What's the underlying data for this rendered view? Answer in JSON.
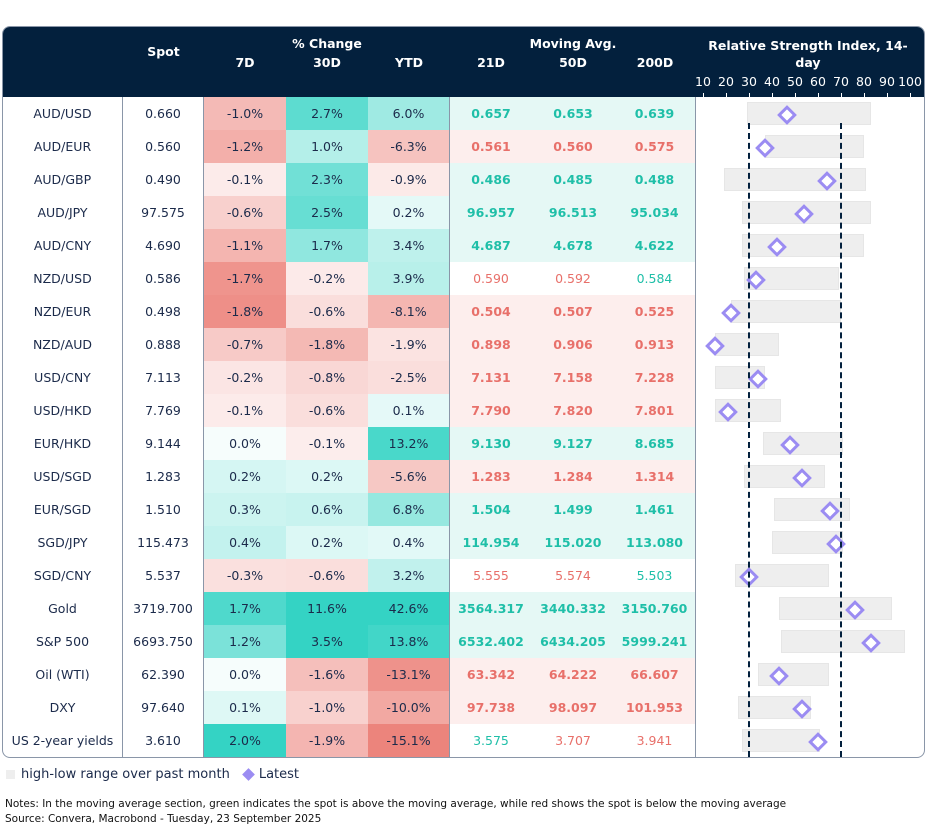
{
  "header": {
    "spot": "Spot",
    "pct_change": "% Change",
    "d7": "7D",
    "d30": "30D",
    "ytd": "YTD",
    "moving_avg": "Moving Avg.",
    "ma21": "21D",
    "ma50": "50D",
    "ma200": "200D",
    "rsi_title": "Relative Strength Index, 14-day",
    "rsi_ticks": [
      "10",
      "20",
      "30",
      "40",
      "50",
      "60",
      "70",
      "80",
      "90",
      "100"
    ]
  },
  "chart_data": {
    "type": "table",
    "rsi_axis": [
      10,
      100
    ],
    "rsi_reference_lines": [
      30,
      70
    ],
    "colors": {
      "header": "#03203d",
      "green_text": "#1fbfa8",
      "red_text": "#e8706a",
      "latest": "#9b8cf2",
      "range": "#eeeeee"
    },
    "rows": [
      {
        "name": "AUD/USD",
        "spot": "0.660",
        "d7": -1.0,
        "d30": 2.7,
        "ytd": 6.0,
        "ma": [
          "0.657",
          "0.653",
          "0.639"
        ],
        "ma_sig": [
          "g",
          "g",
          "g"
        ],
        "ma_bold": true,
        "rsi_low": 29,
        "rsi_high": 83,
        "rsi": 46.5
      },
      {
        "name": "AUD/EUR",
        "spot": "0.560",
        "d7": -1.2,
        "d30": 1.0,
        "ytd": -6.3,
        "ma": [
          "0.561",
          "0.560",
          "0.575"
        ],
        "ma_sig": [
          "r",
          "r",
          "r"
        ],
        "ma_bold": true,
        "rsi_low": 37,
        "rsi_high": 80,
        "rsi": 37
      },
      {
        "name": "AUD/GBP",
        "spot": "0.490",
        "d7": -0.1,
        "d30": 2.3,
        "ytd": -0.9,
        "ma": [
          "0.486",
          "0.485",
          "0.488"
        ],
        "ma_sig": [
          "g",
          "g",
          "g"
        ],
        "ma_bold": true,
        "rsi_low": 19,
        "rsi_high": 81,
        "rsi": 64
      },
      {
        "name": "AUD/JPY",
        "spot": "97.575",
        "d7": -0.6,
        "d30": 2.5,
        "ytd": 0.2,
        "ma": [
          "96.957",
          "96.513",
          "95.034"
        ],
        "ma_sig": [
          "g",
          "g",
          "g"
        ],
        "ma_bold": true,
        "rsi_low": 27,
        "rsi_high": 83,
        "rsi": 54
      },
      {
        "name": "AUD/CNY",
        "spot": "4.690",
        "d7": -1.1,
        "d30": 1.7,
        "ytd": 3.4,
        "ma": [
          "4.687",
          "4.678",
          "4.622"
        ],
        "ma_sig": [
          "g",
          "g",
          "g"
        ],
        "ma_bold": true,
        "rsi_low": 27,
        "rsi_high": 80,
        "rsi": 42
      },
      {
        "name": "NZD/USD",
        "spot": "0.586",
        "d7": -1.7,
        "d30": -0.2,
        "ytd": 3.9,
        "ma": [
          "0.590",
          "0.592",
          "0.584"
        ],
        "ma_sig": [
          "r",
          "r",
          "g"
        ],
        "ma_bold": false,
        "rsi_low": 28,
        "rsi_high": 69,
        "rsi": 33
      },
      {
        "name": "NZD/EUR",
        "spot": "0.498",
        "d7": -1.8,
        "d30": -0.6,
        "ytd": -8.1,
        "ma": [
          "0.504",
          "0.507",
          "0.525"
        ],
        "ma_sig": [
          "r",
          "r",
          "r"
        ],
        "ma_bold": true,
        "rsi_low": 22,
        "rsi_high": 70,
        "rsi": 22
      },
      {
        "name": "NZD/AUD",
        "spot": "0.888",
        "d7": -0.7,
        "d30": -1.8,
        "ytd": -1.9,
        "ma": [
          "0.898",
          "0.906",
          "0.913"
        ],
        "ma_sig": [
          "r",
          "r",
          "r"
        ],
        "ma_bold": true,
        "rsi_low": 15,
        "rsi_high": 43,
        "rsi": 15
      },
      {
        "name": "USD/CNY",
        "spot": "7.113",
        "d7": -0.2,
        "d30": -0.8,
        "ytd": -2.5,
        "ma": [
          "7.131",
          "7.158",
          "7.228"
        ],
        "ma_sig": [
          "r",
          "r",
          "r"
        ],
        "ma_bold": true,
        "rsi_low": 15,
        "rsi_high": 37,
        "rsi": 34
      },
      {
        "name": "USD/HKD",
        "spot": "7.769",
        "d7": -0.1,
        "d30": -0.6,
        "ytd": 0.1,
        "ma": [
          "7.790",
          "7.820",
          "7.801"
        ],
        "ma_sig": [
          "r",
          "r",
          "r"
        ],
        "ma_bold": true,
        "rsi_low": 15,
        "rsi_high": 44,
        "rsi": 21
      },
      {
        "name": "EUR/HKD",
        "spot": "9.144",
        "d7": 0.0,
        "d30": -0.1,
        "ytd": 13.2,
        "ma": [
          "9.130",
          "9.127",
          "8.685"
        ],
        "ma_sig": [
          "g",
          "g",
          "g"
        ],
        "ma_bold": true,
        "rsi_low": 36,
        "rsi_high": 71,
        "rsi": 48
      },
      {
        "name": "USD/SGD",
        "spot": "1.283",
        "d7": 0.2,
        "d30": 0.2,
        "ytd": -5.6,
        "ma": [
          "1.283",
          "1.284",
          "1.314"
        ],
        "ma_sig": [
          "r",
          "r",
          "r"
        ],
        "ma_bold": true,
        "rsi_low": 28,
        "rsi_high": 63,
        "rsi": 53
      },
      {
        "name": "EUR/SGD",
        "spot": "1.510",
        "d7": 0.3,
        "d30": 0.6,
        "ytd": 6.8,
        "ma": [
          "1.504",
          "1.499",
          "1.461"
        ],
        "ma_sig": [
          "g",
          "g",
          "g"
        ],
        "ma_bold": true,
        "rsi_low": 41,
        "rsi_high": 74,
        "rsi": 65
      },
      {
        "name": "SGD/JPY",
        "spot": "115.473",
        "d7": 0.4,
        "d30": 0.2,
        "ytd": 0.4,
        "ma": [
          "114.954",
          "115.020",
          "113.080"
        ],
        "ma_sig": [
          "g",
          "g",
          "g"
        ],
        "ma_bold": true,
        "rsi_low": 40,
        "rsi_high": 71,
        "rsi": 68
      },
      {
        "name": "SGD/CNY",
        "spot": "5.537",
        "d7": -0.3,
        "d30": -0.6,
        "ytd": 3.2,
        "ma": [
          "5.555",
          "5.574",
          "5.503"
        ],
        "ma_sig": [
          "r",
          "r",
          "g"
        ],
        "ma_bold": false,
        "rsi_low": 24,
        "rsi_high": 65,
        "rsi": 30
      },
      {
        "name": "Gold",
        "spot": "3719.700",
        "d7": 1.7,
        "d30": 11.6,
        "ytd": 42.6,
        "ma": [
          "3564.317",
          "3440.332",
          "3150.760"
        ],
        "ma_sig": [
          "g",
          "g",
          "g"
        ],
        "ma_bold": true,
        "rsi_low": 43,
        "rsi_high": 92,
        "rsi": 76
      },
      {
        "name": "S&P 500",
        "spot": "6693.750",
        "d7": 1.2,
        "d30": 3.5,
        "ytd": 13.8,
        "ma": [
          "6532.402",
          "6434.205",
          "5999.241"
        ],
        "ma_sig": [
          "g",
          "g",
          "g"
        ],
        "ma_bold": true,
        "rsi_low": 44,
        "rsi_high": 98,
        "rsi": 83
      },
      {
        "name": "Oil (WTI)",
        "spot": "62.390",
        "d7": 0.0,
        "d30": -1.6,
        "ytd": -13.1,
        "ma": [
          "63.342",
          "64.222",
          "66.607"
        ],
        "ma_sig": [
          "r",
          "r",
          "r"
        ],
        "ma_bold": true,
        "rsi_low": 34,
        "rsi_high": 65,
        "rsi": 43
      },
      {
        "name": "DXY",
        "spot": "97.640",
        "d7": 0.1,
        "d30": -1.0,
        "ytd": -10.0,
        "ma": [
          "97.738",
          "98.097",
          "101.953"
        ],
        "ma_sig": [
          "r",
          "r",
          "r"
        ],
        "ma_bold": true,
        "rsi_low": 25,
        "rsi_high": 57,
        "rsi": 53
      },
      {
        "name": "US 2-year yields",
        "spot": "3.610",
        "d7": 2.0,
        "d30": -1.9,
        "ytd": -15.1,
        "ma": [
          "3.575",
          "3.707",
          "3.941"
        ],
        "ma_sig": [
          "g",
          "r",
          "r"
        ],
        "ma_bold": false,
        "rsi_low": 27,
        "rsi_high": 61,
        "rsi": 60
      }
    ]
  },
  "legend": {
    "range": "high-low range over past month",
    "latest": "Latest"
  },
  "notes": "Notes: In the moving average section, green indicates the spot is above the moving average, while red shows the spot is below the moving average",
  "source": "Source: Convera, Macrobond - Tuesday, 23 September 2025"
}
